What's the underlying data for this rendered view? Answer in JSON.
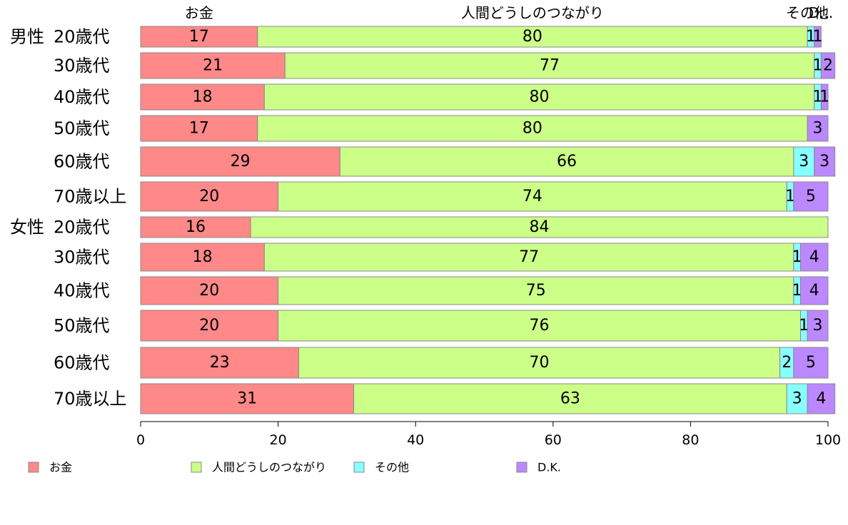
{
  "chart_data": {
    "type": "bar",
    "orientation": "horizontal",
    "stacked": true,
    "xlim": [
      0,
      100
    ],
    "xticks": [
      0,
      20,
      40,
      60,
      80,
      100
    ],
    "grid": false,
    "legend_position": "bottom",
    "top_labels": [
      "お金",
      "人間どうしのつながり",
      "その他",
      "D..."
    ],
    "group_labels": [
      {
        "text": "男性",
        "row": 0
      },
      {
        "text": "女性",
        "row": 6
      }
    ],
    "categories": [
      "20歳代",
      "30歳代",
      "40歳代",
      "50歳代",
      "60歳代",
      "70歳以上",
      "20歳代",
      "30歳代",
      "40歳代",
      "50歳代",
      "60歳代",
      "70歳以上"
    ],
    "series": [
      {
        "name": "お金",
        "color": "#ff8888",
        "values": [
          17,
          21,
          18,
          17,
          29,
          20,
          16,
          18,
          20,
          20,
          23,
          31
        ]
      },
      {
        "name": "人間どうしのつながり",
        "color": "#ccff88",
        "values": [
          80,
          77,
          80,
          80,
          66,
          74,
          84,
          77,
          75,
          76,
          70,
          63
        ]
      },
      {
        "name": "その他",
        "color": "#88ffff",
        "values": [
          1,
          1,
          1,
          0,
          3,
          1,
          0,
          1,
          1,
          1,
          2,
          3
        ]
      },
      {
        "name": "D.K.",
        "color": "#bb88ff",
        "values": [
          1,
          2,
          1,
          3,
          3,
          5,
          0,
          4,
          4,
          3,
          5,
          4
        ]
      }
    ]
  }
}
